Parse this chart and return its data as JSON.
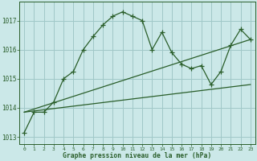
{
  "title": "Graphe pression niveau de la mer (hPa)",
  "background_color": "#cbe8e8",
  "grid_color": "#a0c8c8",
  "line_color": "#2a5e2a",
  "xlim": [
    -0.5,
    23.5
  ],
  "ylim": [
    1012.75,
    1017.65
  ],
  "yticks": [
    1013,
    1014,
    1015,
    1016,
    1017
  ],
  "xticks": [
    0,
    1,
    2,
    3,
    4,
    5,
    6,
    7,
    8,
    9,
    10,
    11,
    12,
    13,
    14,
    15,
    16,
    17,
    18,
    19,
    20,
    21,
    22,
    23
  ],
  "series1": {
    "x": [
      0,
      1,
      2,
      3,
      4,
      5,
      6,
      7,
      8,
      9,
      10,
      11,
      12,
      13,
      14,
      15,
      16,
      17,
      18,
      19,
      20,
      21,
      22,
      23
    ],
    "y": [
      1013.15,
      1013.85,
      1013.85,
      1014.2,
      1015.0,
      1015.25,
      1016.0,
      1016.45,
      1016.85,
      1017.15,
      1017.3,
      1017.15,
      1017.0,
      1016.0,
      1016.6,
      1015.9,
      1015.5,
      1015.35,
      1015.45,
      1014.8,
      1015.25,
      1016.15,
      1016.7,
      1016.35
    ]
  },
  "series2": {
    "x": [
      0,
      23
    ],
    "y": [
      1013.85,
      1016.35
    ]
  },
  "series3": {
    "x": [
      0,
      23
    ],
    "y": [
      1013.85,
      1014.8
    ]
  }
}
